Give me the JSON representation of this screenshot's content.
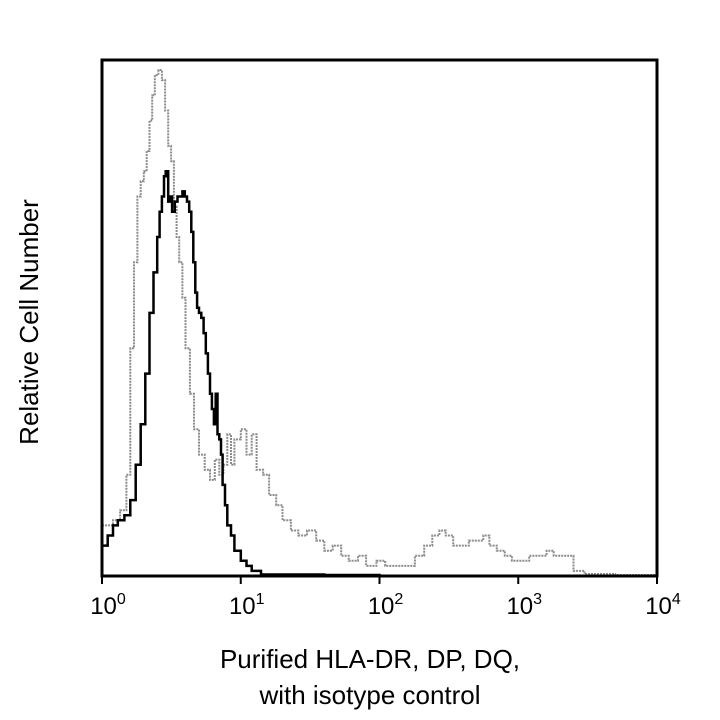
{
  "chart_data": {
    "type": "line",
    "title": "",
    "xlabel_lines": [
      "Purified HLA-DR, DP, DQ,",
      "with isotype control"
    ],
    "ylabel": "Relative Cell Number",
    "xscale": "log",
    "xlim": [
      1,
      10000
    ],
    "ylim": [
      0,
      100
    ],
    "grid": false,
    "x_ticks": [
      {
        "base": "10",
        "exp": "0",
        "value": 1
      },
      {
        "base": "10",
        "exp": "1",
        "value": 10
      },
      {
        "base": "10",
        "exp": "2",
        "value": 100
      },
      {
        "base": "10",
        "exp": "3",
        "value": 1000
      },
      {
        "base": "10",
        "exp": "4",
        "value": 10000
      }
    ],
    "series": [
      {
        "color": "#8c8c8c",
        "points": [
          [
            1.0,
            10
          ],
          [
            1.2,
            11
          ],
          [
            1.35,
            13
          ],
          [
            1.5,
            20
          ],
          [
            1.6,
            45
          ],
          [
            1.7,
            62
          ],
          [
            1.8,
            75
          ],
          [
            1.9,
            78
          ],
          [
            2.0,
            80
          ],
          [
            2.1,
            84
          ],
          [
            2.2,
            90
          ],
          [
            2.3,
            95
          ],
          [
            2.4,
            99
          ],
          [
            2.55,
            100
          ],
          [
            2.7,
            98
          ],
          [
            2.85,
            92
          ],
          [
            3.0,
            85
          ],
          [
            3.15,
            82
          ],
          [
            3.3,
            73
          ],
          [
            3.45,
            67
          ],
          [
            3.6,
            62
          ],
          [
            3.8,
            55
          ],
          [
            4.0,
            45
          ],
          [
            4.3,
            36
          ],
          [
            4.6,
            29
          ],
          [
            5.0,
            24
          ],
          [
            5.5,
            21
          ],
          [
            6.0,
            19
          ],
          [
            6.5,
            23
          ],
          [
            7.0,
            20
          ],
          [
            7.5,
            22
          ],
          [
            8.0,
            28
          ],
          [
            8.5,
            22
          ],
          [
            9.0,
            27
          ],
          [
            10.0,
            29
          ],
          [
            11.0,
            24
          ],
          [
            12.0,
            28
          ],
          [
            13.0,
            21
          ],
          [
            14.5,
            20
          ],
          [
            16.0,
            16
          ],
          [
            18.0,
            14
          ],
          [
            20.0,
            11
          ],
          [
            23.0,
            9
          ],
          [
            26.0,
            8
          ],
          [
            30.0,
            9
          ],
          [
            35.0,
            7
          ],
          [
            40.0,
            5
          ],
          [
            46.0,
            6
          ],
          [
            53.0,
            4
          ],
          [
            60.0,
            3
          ],
          [
            70.0,
            4
          ],
          [
            80.0,
            2
          ],
          [
            95.0,
            3
          ],
          [
            110.0,
            2
          ],
          [
            130.0,
            2
          ],
          [
            150.0,
            2
          ],
          [
            180.0,
            4
          ],
          [
            210.0,
            6
          ],
          [
            240.0,
            8
          ],
          [
            270.0,
            9
          ],
          [
            300.0,
            8
          ],
          [
            340.0,
            6
          ],
          [
            390.0,
            6
          ],
          [
            440.0,
            7
          ],
          [
            500.0,
            7
          ],
          [
            560.0,
            8
          ],
          [
            620.0,
            6
          ],
          [
            700.0,
            5
          ],
          [
            800.0,
            4
          ],
          [
            900.0,
            3
          ],
          [
            1000.0,
            3
          ],
          [
            1200.0,
            4
          ],
          [
            1400.0,
            4
          ],
          [
            1600.0,
            5
          ],
          [
            1800.0,
            4
          ],
          [
            2000.0,
            4
          ],
          [
            2300.0,
            4
          ],
          [
            2500.0,
            1
          ],
          [
            3000.0,
            0.4
          ],
          [
            5000.0,
            0.2
          ],
          [
            10000.0,
            0.2
          ]
        ]
      },
      {
        "color": "#000000",
        "points": [
          [
            1.0,
            6
          ],
          [
            1.1,
            8
          ],
          [
            1.2,
            10
          ],
          [
            1.3,
            11
          ],
          [
            1.45,
            12
          ],
          [
            1.6,
            15
          ],
          [
            1.75,
            22
          ],
          [
            1.9,
            30
          ],
          [
            2.05,
            40
          ],
          [
            2.2,
            52
          ],
          [
            2.35,
            60
          ],
          [
            2.5,
            67
          ],
          [
            2.6,
            72
          ],
          [
            2.7,
            75
          ],
          [
            2.8,
            79
          ],
          [
            2.88,
            80
          ],
          [
            3.0,
            74
          ],
          [
            3.1,
            75
          ],
          [
            3.2,
            72
          ],
          [
            3.35,
            74
          ],
          [
            3.5,
            75
          ],
          [
            3.65,
            75
          ],
          [
            3.8,
            76
          ],
          [
            3.95,
            75
          ],
          [
            4.1,
            74
          ],
          [
            4.25,
            72
          ],
          [
            4.4,
            68
          ],
          [
            4.55,
            62
          ],
          [
            4.7,
            56
          ],
          [
            4.85,
            53
          ],
          [
            5.0,
            52
          ],
          [
            5.2,
            51
          ],
          [
            5.4,
            48
          ],
          [
            5.6,
            44
          ],
          [
            5.8,
            40
          ],
          [
            6.0,
            36
          ],
          [
            6.2,
            33
          ],
          [
            6.4,
            30
          ],
          [
            6.6,
            36
          ],
          [
            6.8,
            28
          ],
          [
            7.0,
            27
          ],
          [
            7.2,
            24
          ],
          [
            7.4,
            18
          ],
          [
            7.7,
            14
          ],
          [
            8.0,
            10
          ],
          [
            8.5,
            8
          ],
          [
            9.0,
            5
          ],
          [
            10.0,
            3
          ],
          [
            11.0,
            2
          ],
          [
            12.0,
            1
          ],
          [
            14.0,
            0.3
          ],
          [
            20.0,
            0.3
          ],
          [
            40.0,
            0.2
          ],
          [
            100.0,
            0.1
          ]
        ]
      }
    ]
  }
}
